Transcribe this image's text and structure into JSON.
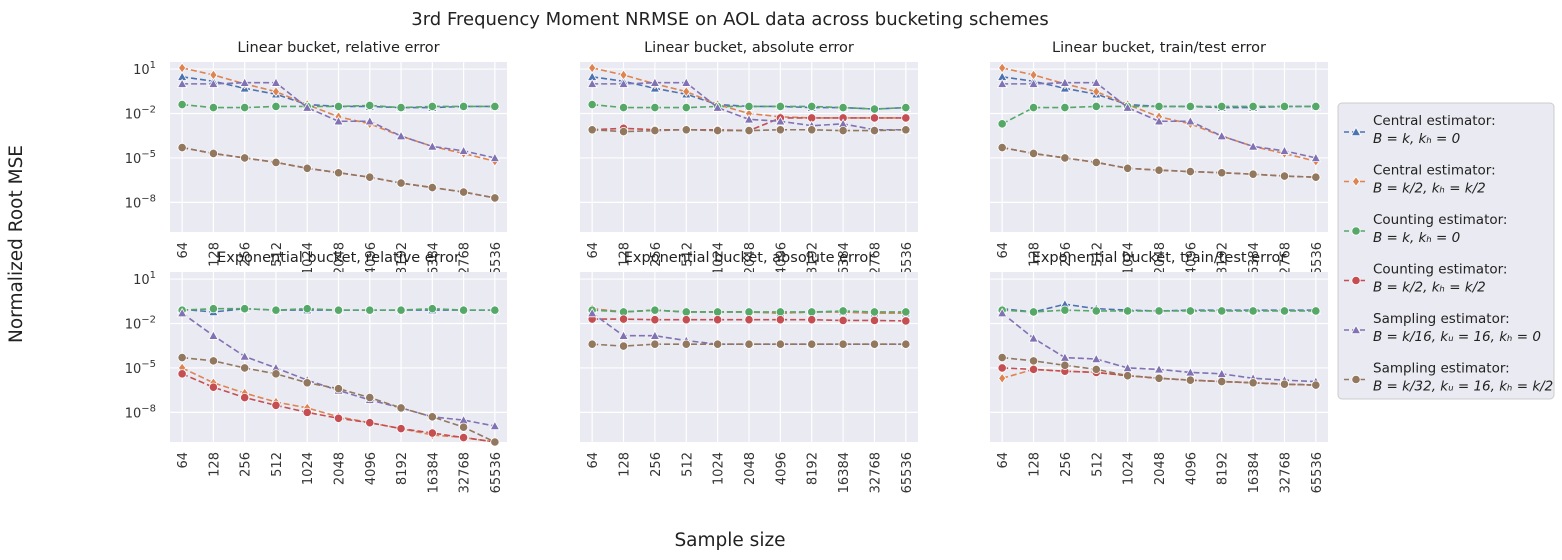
{
  "figure_title": "3rd Frequency Moment NRMSE on AOL data across bucketing schemes",
  "ylabel": "Normalized Root MSE",
  "xlabel": "Sample size",
  "legend": [
    {
      "line1": "Central estimator:",
      "line2": "B = k, kₕ = 0"
    },
    {
      "line1": "Central estimator:",
      "line2": "B = k/2, kₕ = k/2"
    },
    {
      "line1": "Counting estimator:",
      "line2": "B = k, kₕ = 0"
    },
    {
      "line1": "Counting estimator:",
      "line2": "B = k/2, kₕ = k/2"
    },
    {
      "line1": "Sampling estimator:",
      "line2": "B = k/16, kᵤ = 16, kₕ = 0"
    },
    {
      "line1": "Sampling estimator:",
      "line2": "B = k/32, kᵤ = 16, kₕ = k/2"
    }
  ],
  "colors": {
    "central_k": "#4c72b0",
    "central_k2": "#dd8452",
    "counting_k": "#55a868",
    "counting_k2": "#c44e52",
    "sampling_16": "#8172b3",
    "sampling_32": "#937860",
    "panel_bg": "#eaeaf2",
    "grid": "#ffffff"
  },
  "chart_data": [
    {
      "type": "line",
      "title": "Linear bucket, relative error",
      "log_y": true,
      "ylim": [
        1e-10,
        30
      ],
      "y_ticks": [
        "10^1",
        "10^-2",
        "10^-5",
        "10^-8"
      ],
      "categories": [
        "64",
        "128",
        "256",
        "512",
        "1024",
        "2048",
        "4096",
        "8192",
        "16384",
        "32768",
        "65536"
      ],
      "series": [
        {
          "key": "central_k",
          "marker": "triangle",
          "values": [
            3,
            1.5,
            0.5,
            0.2,
            0.04,
            0.03,
            0.03,
            0.025,
            0.025,
            0.03,
            0.03
          ]
        },
        {
          "key": "central_k2",
          "marker": "diamond",
          "values": [
            12,
            4,
            1,
            0.3,
            0.04,
            0.006,
            0.002,
            0.0003,
            6e-05,
            2e-05,
            6e-06
          ]
        },
        {
          "key": "counting_k",
          "marker": "circle",
          "values": [
            0.04,
            0.025,
            0.025,
            0.03,
            0.03,
            0.03,
            0.035,
            0.025,
            0.03,
            0.03,
            0.03
          ]
        },
        {
          "key": "counting_k2",
          "marker": "circle",
          "values": [
            5e-05,
            2e-05,
            1e-05,
            5e-06,
            2e-06,
            1e-06,
            5e-07,
            2e-07,
            1e-07,
            5e-08,
            2e-08
          ]
        },
        {
          "key": "sampling_16",
          "marker": "triangle",
          "values": [
            1,
            1,
            1.2,
            1.2,
            0.025,
            0.003,
            0.003,
            0.0003,
            6e-05,
            3e-05,
            1e-05
          ]
        },
        {
          "key": "sampling_32",
          "marker": "circle",
          "values": [
            5e-05,
            2e-05,
            1e-05,
            5e-06,
            2e-06,
            1e-06,
            5e-07,
            2e-07,
            1e-07,
            5e-08,
            2e-08
          ]
        }
      ]
    },
    {
      "type": "line",
      "title": "Linear bucket, absolute error",
      "log_y": true,
      "ylim": [
        1e-10,
        30
      ],
      "categories": [
        "64",
        "128",
        "256",
        "512",
        "1024",
        "2048",
        "4096",
        "8192",
        "16384",
        "32768",
        "65536"
      ],
      "series": [
        {
          "key": "central_k",
          "marker": "triangle",
          "values": [
            3,
            1.5,
            0.5,
            0.2,
            0.04,
            0.03,
            0.03,
            0.025,
            0.025,
            0.02,
            0.025
          ]
        },
        {
          "key": "central_k2",
          "marker": "diamond",
          "values": [
            12,
            4,
            1,
            0.3,
            0.04,
            0.01,
            0.006,
            0.005,
            0.005,
            0.005,
            0.005
          ]
        },
        {
          "key": "counting_k",
          "marker": "circle",
          "values": [
            0.04,
            0.025,
            0.025,
            0.025,
            0.03,
            0.03,
            0.03,
            0.03,
            0.025,
            0.02,
            0.025
          ]
        },
        {
          "key": "counting_k2",
          "marker": "circle",
          "values": [
            0.0008,
            0.001,
            0.0008,
            0.0008,
            0.0008,
            0.0007,
            0.005,
            0.005,
            0.005,
            0.005,
            0.005
          ]
        },
        {
          "key": "sampling_16",
          "marker": "triangle",
          "values": [
            1,
            1,
            1.2,
            1.2,
            0.025,
            0.004,
            0.003,
            0.0015,
            0.002,
            0.0008,
            0.0008
          ]
        },
        {
          "key": "sampling_32",
          "marker": "circle",
          "values": [
            0.0008,
            0.0006,
            0.0007,
            0.0008,
            0.0007,
            0.0007,
            0.0008,
            0.0008,
            0.0007,
            0.0007,
            0.0008
          ]
        }
      ]
    },
    {
      "type": "line",
      "title": "Linear bucket, train/test error",
      "log_y": true,
      "ylim": [
        1e-10,
        30
      ],
      "categories": [
        "64",
        "128",
        "256",
        "512",
        "1024",
        "2048",
        "4096",
        "8192",
        "16384",
        "32768",
        "65536"
      ],
      "series": [
        {
          "key": "central_k",
          "marker": "triangle",
          "values": [
            3,
            1.5,
            0.5,
            0.2,
            0.04,
            0.03,
            0.03,
            0.025,
            0.025,
            0.03,
            0.03
          ]
        },
        {
          "key": "central_k2",
          "marker": "diamond",
          "values": [
            12,
            4,
            1,
            0.3,
            0.04,
            0.006,
            0.002,
            0.0003,
            6e-05,
            2e-05,
            6e-06
          ]
        },
        {
          "key": "counting_k",
          "marker": "circle",
          "values": [
            0.002,
            0.025,
            0.025,
            0.03,
            0.03,
            0.03,
            0.03,
            0.03,
            0.03,
            0.03,
            0.03
          ]
        },
        {
          "key": "counting_k2",
          "marker": "circle",
          "values": [
            5e-05,
            2e-05,
            1e-05,
            5e-06,
            2e-06,
            1.5e-06,
            1.2e-06,
            1e-06,
            8e-07,
            6e-07,
            5e-07
          ]
        },
        {
          "key": "sampling_16",
          "marker": "triangle",
          "values": [
            1,
            1,
            1.2,
            1.2,
            0.025,
            0.003,
            0.003,
            0.0003,
            6e-05,
            3e-05,
            1e-05
          ]
        },
        {
          "key": "sampling_32",
          "marker": "circle",
          "values": [
            5e-05,
            2e-05,
            1e-05,
            5e-06,
            2e-06,
            1.5e-06,
            1.2e-06,
            1e-06,
            8e-07,
            6e-07,
            5e-07
          ]
        }
      ]
    },
    {
      "type": "line",
      "title": "Exponential bucket, relative error",
      "log_y": true,
      "ylim": [
        1e-10,
        30
      ],
      "y_ticks": [
        "10^1",
        "10^-2",
        "10^-5",
        "10^-8"
      ],
      "categories": [
        "64",
        "128",
        "256",
        "512",
        "1024",
        "2048",
        "4096",
        "8192",
        "16384",
        "32768",
        "65536"
      ],
      "series": [
        {
          "key": "central_k",
          "marker": "triangle",
          "values": [
            0.09,
            0.06,
            0.1,
            0.08,
            0.08,
            0.08,
            0.08,
            0.08,
            0.08,
            0.08,
            0.08
          ]
        },
        {
          "key": "central_k2",
          "marker": "diamond",
          "values": [
            1e-05,
            1e-06,
            2e-07,
            5e-08,
            2e-08,
            5e-09,
            2e-09,
            8e-10,
            3e-10,
            2e-10,
            1e-10
          ]
        },
        {
          "key": "counting_k",
          "marker": "circle",
          "values": [
            0.08,
            0.1,
            0.1,
            0.08,
            0.1,
            0.08,
            0.08,
            0.08,
            0.1,
            0.08,
            0.08
          ]
        },
        {
          "key": "counting_k2",
          "marker": "circle",
          "values": [
            4e-06,
            5e-07,
            1e-07,
            3e-08,
            1e-08,
            4e-09,
            2e-09,
            8e-10,
            4e-10,
            2e-10,
            1e-10
          ]
        },
        {
          "key": "sampling_16",
          "marker": "triangle",
          "values": [
            0.05,
            0.0015,
            6e-05,
            1e-05,
            1.5e-06,
            3e-07,
            7e-08,
            2e-08,
            5e-09,
            3e-09,
            1.2e-09
          ]
        },
        {
          "key": "sampling_32",
          "marker": "circle",
          "values": [
            5e-05,
            3e-05,
            1e-05,
            4e-06,
            1e-06,
            4e-07,
            1e-07,
            2e-08,
            5e-09,
            1e-09,
            1e-10
          ]
        }
      ]
    },
    {
      "type": "line",
      "title": "Exponential bucket, absolute error",
      "log_y": true,
      "ylim": [
        1e-10,
        30
      ],
      "categories": [
        "64",
        "128",
        "256",
        "512",
        "1024",
        "2048",
        "4096",
        "8192",
        "16384",
        "32768",
        "65536"
      ],
      "series": [
        {
          "key": "central_k",
          "marker": "triangle",
          "values": [
            0.1,
            0.06,
            0.08,
            0.06,
            0.06,
            0.06,
            0.05,
            0.06,
            0.06,
            0.05,
            0.05
          ]
        },
        {
          "key": "central_k2",
          "marker": "diamond",
          "values": [
            0.1,
            0.06,
            0.08,
            0.06,
            0.06,
            0.06,
            0.05,
            0.06,
            0.06,
            0.05,
            0.05
          ]
        },
        {
          "key": "counting_k",
          "marker": "circle",
          "values": [
            0.08,
            0.06,
            0.08,
            0.06,
            0.06,
            0.06,
            0.06,
            0.06,
            0.07,
            0.06,
            0.06
          ]
        },
        {
          "key": "counting_k2",
          "marker": "circle",
          "values": [
            0.02,
            0.02,
            0.018,
            0.018,
            0.018,
            0.018,
            0.018,
            0.018,
            0.016,
            0.016,
            0.015
          ]
        },
        {
          "key": "sampling_16",
          "marker": "triangle",
          "values": [
            0.05,
            0.0015,
            0.0015,
            0.0007,
            0.0004,
            0.0004,
            0.0004,
            0.0004,
            0.0004,
            0.0004,
            0.0004
          ]
        },
        {
          "key": "sampling_32",
          "marker": "circle",
          "values": [
            0.0004,
            0.0003,
            0.0004,
            0.0004,
            0.0004,
            0.0004,
            0.0004,
            0.0004,
            0.0004,
            0.0004,
            0.0004
          ]
        }
      ]
    },
    {
      "type": "line",
      "title": "Exponential bucket, train/test error",
      "log_y": true,
      "ylim": [
        1e-10,
        30
      ],
      "categories": [
        "64",
        "128",
        "256",
        "512",
        "1024",
        "2048",
        "4096",
        "8192",
        "16384",
        "32768",
        "65536"
      ],
      "series": [
        {
          "key": "central_k",
          "marker": "triangle",
          "values": [
            0.1,
            0.06,
            0.2,
            0.1,
            0.08,
            0.07,
            0.08,
            0.08,
            0.08,
            0.08,
            0.08
          ]
        },
        {
          "key": "central_k2",
          "marker": "diamond",
          "values": [
            2e-06,
            8e-06,
            6e-06,
            5e-06,
            3e-06,
            2e-06,
            1.5e-06,
            1.2e-06,
            1e-06,
            8e-07,
            7e-07
          ]
        },
        {
          "key": "counting_k",
          "marker": "circle",
          "values": [
            0.08,
            0.06,
            0.08,
            0.07,
            0.07,
            0.07,
            0.07,
            0.07,
            0.07,
            0.07,
            0.07
          ]
        },
        {
          "key": "counting_k2",
          "marker": "circle",
          "values": [
            1e-05,
            8e-06,
            6e-06,
            5e-06,
            3e-06,
            2e-06,
            1.5e-06,
            1.2e-06,
            1e-06,
            8e-07,
            7e-07
          ]
        },
        {
          "key": "sampling_16",
          "marker": "triangle",
          "values": [
            0.05,
            0.001,
            5e-05,
            4e-05,
            1e-05,
            8e-06,
            5e-06,
            4e-06,
            2e-06,
            1.5e-06,
            1.2e-06
          ]
        },
        {
          "key": "sampling_32",
          "marker": "circle",
          "values": [
            5e-05,
            3e-05,
            1.5e-05,
            8e-06,
            3e-06,
            2e-06,
            1.5e-06,
            1.2e-06,
            1e-06,
            8e-07,
            7e-07
          ]
        }
      ]
    }
  ]
}
